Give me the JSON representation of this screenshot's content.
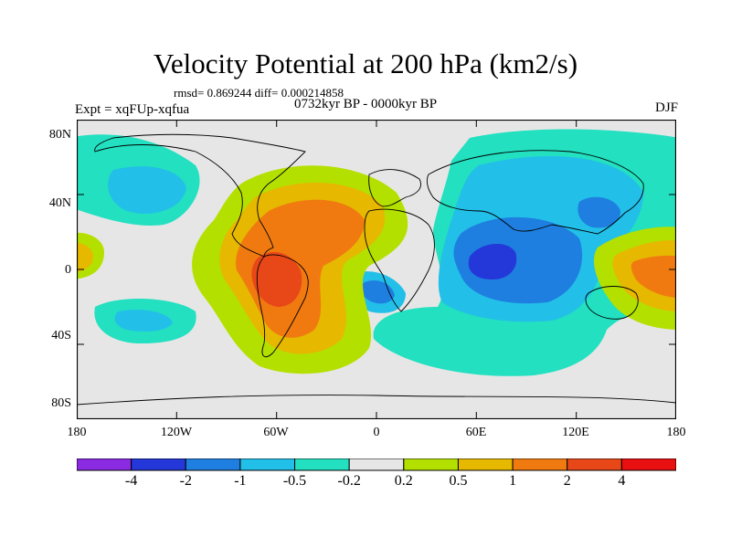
{
  "title": "Velocity Potential at 200 hPa (km2/s)",
  "stats": "rmsd= 0.869244 diff= 0.000214858",
  "experiment": "Expt = xqFUp-xqfua",
  "period": "0732kyr BP - 0000kyr BP",
  "season": "DJF",
  "lat_ticks": [
    "80N",
    "40N",
    "0",
    "40S",
    "80S"
  ],
  "lon_ticks": [
    "180",
    "120W",
    "60W",
    "0",
    "60E",
    "120E",
    "180"
  ],
  "colorbar": {
    "colors": [
      "#8a2be2",
      "#2437d8",
      "#1e7fe0",
      "#22bfe8",
      "#22e0c0",
      "#e6e6e6",
      "#b4e000",
      "#e6b800",
      "#f07a10",
      "#e84818",
      "#e81010"
    ],
    "labels": [
      "-4",
      "-2",
      "-1",
      "-0.5",
      "-0.2",
      "0.2",
      "0.5",
      "1",
      "2",
      "4"
    ]
  },
  "colors": {
    "background_zero": "#e6e6e6",
    "coastline": "#000000"
  }
}
